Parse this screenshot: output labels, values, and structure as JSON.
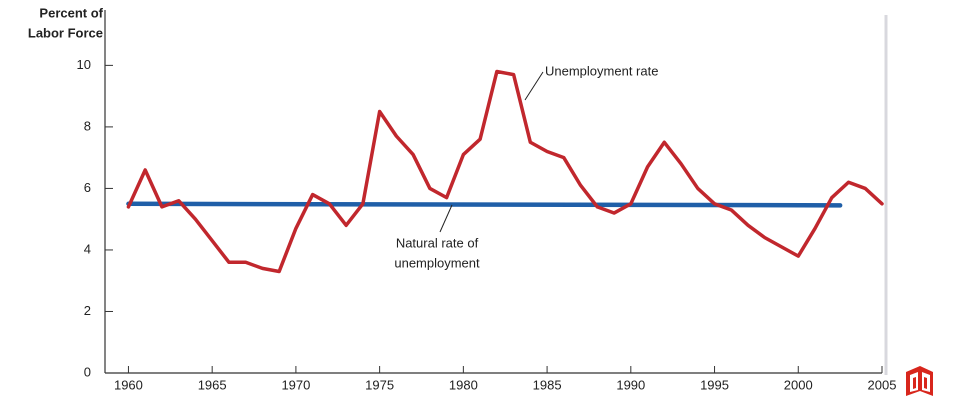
{
  "chart_data": {
    "type": "line",
    "y_label": [
      "Percent of",
      "Labor Force"
    ],
    "xlim": [
      1958.6,
      2005
    ],
    "ylim": [
      0,
      11.8
    ],
    "xticks": [
      1960,
      1965,
      1970,
      1975,
      1980,
      1985,
      1990,
      1995,
      2000,
      2005
    ],
    "yticks": [
      0,
      2,
      4,
      6,
      8,
      10
    ],
    "series": [
      {
        "color": "#c1272d",
        "x": [
          1960,
          1961,
          1962,
          1963,
          1964,
          1965,
          1966,
          1967,
          1968,
          1969,
          1970,
          1971,
          1972,
          1973,
          1974,
          1975,
          1976,
          1977,
          1978,
          1979,
          1980,
          1981,
          1982,
          1983,
          1984,
          1985,
          1986,
          1987,
          1988,
          1989,
          1990,
          1991,
          1992,
          1993,
          1994,
          1995,
          1996,
          1997,
          1998,
          1999,
          2000,
          2001,
          2002,
          2003,
          2004,
          2005
        ],
        "values": [
          5.4,
          6.6,
          5.4,
          5.6,
          5.0,
          4.3,
          3.6,
          3.6,
          3.4,
          3.3,
          4.7,
          5.8,
          5.5,
          4.8,
          5.5,
          8.5,
          7.7,
          7.1,
          6.0,
          5.7,
          7.1,
          7.6,
          9.8,
          9.7,
          7.5,
          7.2,
          7.0,
          6.1,
          5.4,
          5.2,
          5.5,
          6.7,
          7.5,
          6.8,
          6.0,
          5.5,
          5.3,
          4.8,
          4.4,
          4.1,
          3.8,
          4.7,
          5.7,
          6.2,
          6.0,
          5.5
        ]
      },
      {
        "color": "#1f5fa8",
        "x": [
          1960,
          2002.5
        ],
        "values": [
          5.5,
          5.45
        ]
      }
    ],
    "annotations": [
      {
        "lines": [
          "Unemployment rate"
        ]
      },
      {
        "lines": [
          "Natural rate of",
          "unemployment"
        ]
      }
    ]
  }
}
